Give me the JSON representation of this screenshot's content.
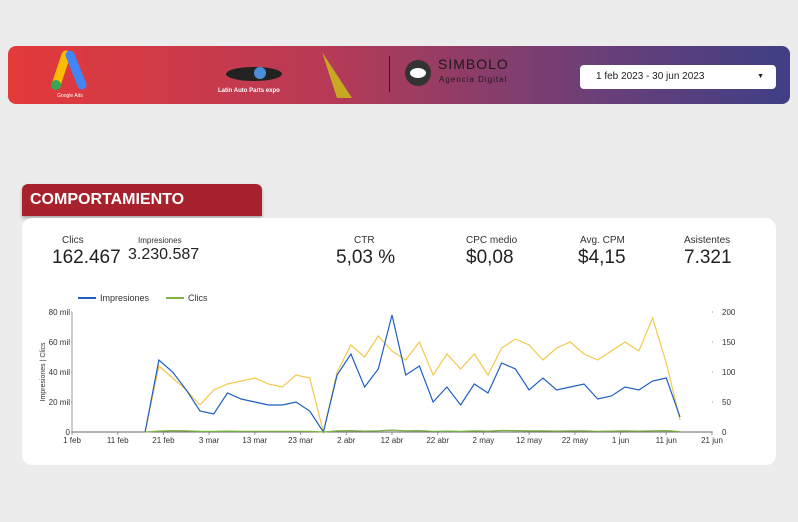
{
  "header": {
    "ads_logo_text": "Google Ads",
    "partner_logo_text": "Latin Auto Parts expo",
    "brand_name": "SÍMBOLO",
    "brand_tagline": "Agencia Digital",
    "date_range": "1 feb 2023 - 30 jun 2023"
  },
  "section": {
    "title": "COMPORTAMIENTO GENERAL"
  },
  "kpis": [
    {
      "label": "Clics",
      "value": "162.467"
    },
    {
      "label": "Impresiones",
      "value": "3.230.587"
    },
    {
      "label": "CTR",
      "value": "5,03 %"
    },
    {
      "label": "CPC medio",
      "value": "$0,08"
    },
    {
      "label": "Avg. CPM",
      "value": "$4,15"
    },
    {
      "label": "Asistentes",
      "value": "7.321"
    }
  ],
  "chart_data": {
    "type": "line",
    "ylabel": "Impresiones | Clics",
    "x": [
      "2023-02-17",
      "2023-02-20",
      "2023-02-23",
      "2023-02-26",
      "2023-03-01",
      "2023-03-04",
      "2023-03-07",
      "2023-03-10",
      "2023-03-13",
      "2023-03-16",
      "2023-03-19",
      "2023-03-22",
      "2023-03-25",
      "2023-03-28",
      "2023-03-31",
      "2023-04-03",
      "2023-04-06",
      "2023-04-09",
      "2023-04-12",
      "2023-04-15",
      "2023-04-18",
      "2023-04-21",
      "2023-04-24",
      "2023-04-27",
      "2023-04-30",
      "2023-05-03",
      "2023-05-06",
      "2023-05-09",
      "2023-05-12",
      "2023-05-15",
      "2023-05-18",
      "2023-05-21",
      "2023-05-24",
      "2023-05-27",
      "2023-05-30",
      "2023-06-02",
      "2023-06-05",
      "2023-06-08",
      "2023-06-11",
      "2023-06-14"
    ],
    "series": [
      {
        "name": "Impresiones",
        "color": "#1f5fc4",
        "values": [
          0,
          48000,
          40000,
          28000,
          14000,
          12000,
          26000,
          22000,
          20000,
          18000,
          18000,
          20000,
          14000,
          0,
          38000,
          52000,
          30000,
          42000,
          78000,
          38000,
          44000,
          20000,
          30000,
          18000,
          32000,
          26000,
          46000,
          42000,
          28000,
          36000,
          28000,
          30000,
          32000,
          22000,
          24000,
          30000,
          28000,
          34000,
          36000,
          10000
        ]
      },
      {
        "name": "Clics",
        "color": "#7cb342",
        "values": [
          0,
          600,
          900,
          700,
          400,
          400,
          600,
          500,
          500,
          500,
          500,
          500,
          400,
          0,
          700,
          900,
          600,
          800,
          1300,
          800,
          900,
          500,
          600,
          400,
          700,
          600,
          1000,
          900,
          700,
          800,
          600,
          700,
          700,
          500,
          600,
          700,
          600,
          800,
          900,
          300
        ]
      },
      {
        "color": "#f2c94c",
        "axis": "y2",
        "values": [
          0,
          110,
          90,
          70,
          45,
          70,
          80,
          85,
          90,
          80,
          75,
          95,
          90,
          0,
          100,
          145,
          125,
          160,
          135,
          120,
          150,
          95,
          130,
          105,
          130,
          95,
          140,
          155,
          145,
          120,
          140,
          150,
          130,
          120,
          135,
          150,
          135,
          190,
          115,
          20
        ]
      }
    ],
    "xlim": [
      "2023-02-01",
      "2023-06-21"
    ],
    "xticks": [
      {
        "value": "2023-02-01",
        "label": "1 feb"
      },
      {
        "value": "2023-02-11",
        "label": "11 feb"
      },
      {
        "value": "2023-02-21",
        "label": "21 feb"
      },
      {
        "value": "2023-03-03",
        "label": "3 mar"
      },
      {
        "value": "2023-03-13",
        "label": "13 mar"
      },
      {
        "value": "2023-03-23",
        "label": "23 mar"
      },
      {
        "value": "2023-04-02",
        "label": "2 abr"
      },
      {
        "value": "2023-04-12",
        "label": "12 abr"
      },
      {
        "value": "2023-04-22",
        "label": "22 abr"
      },
      {
        "value": "2023-05-02",
        "label": "2 may"
      },
      {
        "value": "2023-05-12",
        "label": "12 may"
      },
      {
        "value": "2023-05-22",
        "label": "22 may"
      },
      {
        "value": "2023-06-01",
        "label": "1 jun"
      },
      {
        "value": "2023-06-11",
        "label": "11 jun"
      },
      {
        "value": "2023-06-21",
        "label": "21 jun"
      }
    ],
    "ylim": [
      0,
      80000
    ],
    "yticks": [
      0,
      {
        "value": 20000,
        "label": "20 mil"
      },
      {
        "value": 40000,
        "label": "40 mil"
      },
      {
        "value": 60000,
        "label": "60 mil"
      },
      {
        "value": 80000,
        "label": "80 mil"
      }
    ],
    "y2lim": [
      0,
      200
    ],
    "y2ticks": [
      0,
      50,
      100,
      150,
      200
    ]
  }
}
